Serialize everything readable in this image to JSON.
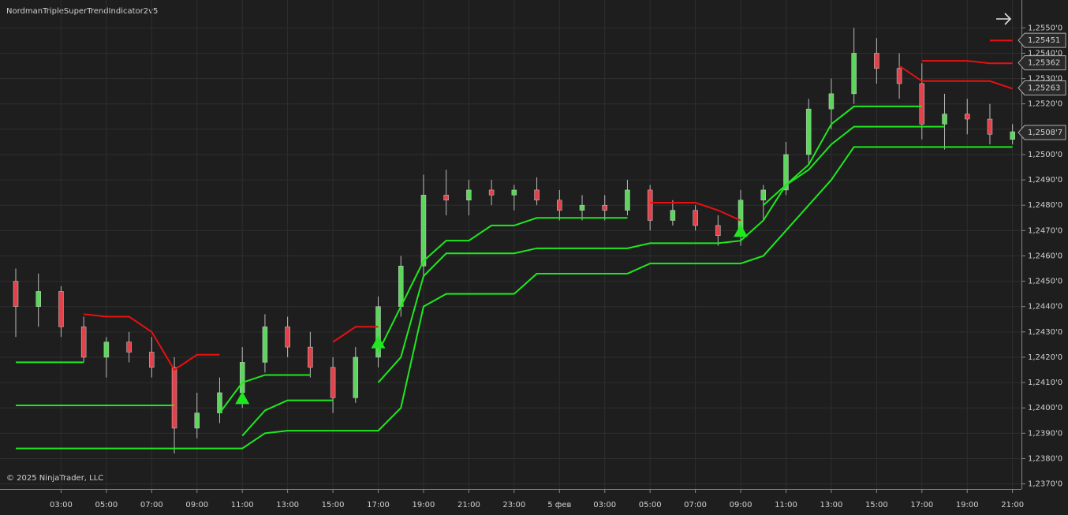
{
  "chart_data": {
    "type": "candlestick",
    "title": "NordmanTripleSuperTrendIndicator2v5",
    "footer": "© 2025 NinjaTrader, LLC",
    "categories": [
      null,
      null,
      "03:00",
      null,
      "05:00",
      null,
      "07:00",
      null,
      "09:00",
      null,
      "11:00",
      null,
      "13:00",
      null,
      "15:00",
      null,
      "17:00",
      null,
      "19:00",
      null,
      "21:00",
      null,
      "23:00",
      null,
      "5 фев",
      null,
      "03:00",
      null,
      "05:00",
      null,
      "07:00",
      null,
      "09:00",
      null,
      "11:00",
      null,
      "13:00",
      null,
      "15:00",
      null,
      "17:00",
      null,
      "19:00",
      null,
      "21:00"
    ],
    "open": [
      1.245,
      1.244,
      1.2446,
      1.2432,
      1.242,
      1.2426,
      1.2422,
      1.2416,
      1.2392,
      1.2398,
      1.2406,
      1.2418,
      1.2432,
      1.2424,
      1.2416,
      1.2404,
      1.242,
      1.244,
      1.2456,
      1.2484,
      1.2482,
      1.2486,
      1.2484,
      1.2486,
      1.2482,
      1.2478,
      1.248,
      1.2478,
      1.2486,
      1.2474,
      1.2478,
      1.2472,
      1.2468,
      1.2482,
      1.2486,
      1.25,
      1.2518,
      1.2524,
      1.254,
      1.2534,
      1.2528,
      1.2512,
      1.2516,
      1.2514,
      1.2506
    ],
    "high": [
      1.2455,
      1.2453,
      1.2448,
      1.2436,
      1.2428,
      1.243,
      1.2428,
      1.242,
      1.2406,
      1.2412,
      1.2424,
      1.2437,
      1.2436,
      1.243,
      1.242,
      1.2424,
      1.2444,
      1.246,
      1.2492,
      1.2494,
      1.249,
      1.249,
      1.2488,
      1.2491,
      1.2486,
      1.2484,
      1.2484,
      1.249,
      1.2488,
      1.2482,
      1.248,
      1.2476,
      1.2486,
      1.2488,
      1.2505,
      1.2522,
      1.253,
      1.255,
      1.2546,
      1.254,
      1.2536,
      1.2524,
      1.2522,
      1.252,
      1.2512
    ],
    "low": [
      1.2428,
      1.2432,
      1.2428,
      1.2418,
      1.2412,
      1.2418,
      1.2412,
      1.2382,
      1.2388,
      1.2394,
      1.24,
      1.2414,
      1.242,
      1.2412,
      1.2398,
      1.2402,
      1.2416,
      1.2436,
      1.2452,
      1.2476,
      1.2476,
      1.248,
      1.2478,
      1.248,
      1.2474,
      1.2474,
      1.2474,
      1.2476,
      1.247,
      1.2472,
      1.247,
      1.2464,
      1.2464,
      1.2474,
      1.2484,
      1.2496,
      1.251,
      1.252,
      1.2528,
      1.2522,
      1.2506,
      1.2502,
      1.2508,
      1.2504,
      1.2504
    ],
    "close": [
      1.244,
      1.2446,
      1.2432,
      1.242,
      1.2426,
      1.2422,
      1.2416,
      1.2392,
      1.2398,
      1.2406,
      1.2418,
      1.2432,
      1.2424,
      1.2416,
      1.2404,
      1.242,
      1.244,
      1.2456,
      1.2484,
      1.2482,
      1.2486,
      1.2484,
      1.2486,
      1.2482,
      1.2478,
      1.248,
      1.2478,
      1.2486,
      1.2474,
      1.2478,
      1.2472,
      1.2468,
      1.2482,
      1.2486,
      1.25,
      1.2518,
      1.2524,
      1.254,
      1.2534,
      1.2528,
      1.2512,
      1.2516,
      1.2514,
      1.2508,
      1.2509
    ],
    "up_color": "#5ed65e",
    "down_color": "#e2424a",
    "series": [
      {
        "color": "#1fe81f",
        "style": "line",
        "values": [
          1.2418,
          1.2418,
          1.2418,
          1.2418,
          null,
          null,
          null,
          null,
          null,
          1.2398,
          1.241,
          1.2413,
          1.2413,
          1.2413,
          null,
          null,
          1.2422,
          1.244,
          1.2458,
          1.2466,
          1.2466,
          1.2472,
          1.2472,
          1.2475,
          1.2475,
          1.2475,
          1.2475,
          1.2475,
          null,
          null,
          null,
          null,
          null,
          1.248,
          1.2488,
          1.2496,
          1.2512,
          1.2519,
          1.2519,
          1.2519,
          1.2519,
          null,
          null,
          null,
          null
        ]
      },
      {
        "color": "#1fe81f",
        "style": "line",
        "values": [
          1.2401,
          1.2401,
          1.2401,
          1.2401,
          1.2401,
          1.2401,
          1.2401,
          1.2401,
          null,
          null,
          1.2389,
          1.2399,
          1.2403,
          1.2403,
          1.2403,
          null,
          1.241,
          1.242,
          1.2452,
          1.2461,
          1.2461,
          1.2461,
          1.2461,
          1.2463,
          1.2463,
          1.2463,
          1.2463,
          1.2463,
          1.2465,
          1.2465,
          1.2465,
          1.2465,
          1.2466,
          1.2474,
          1.2488,
          1.2494,
          1.2504,
          1.2511,
          1.2511,
          1.2511,
          1.2511,
          1.2511,
          null,
          null,
          null
        ]
      },
      {
        "color": "#1fe81f",
        "style": "line",
        "values": [
          1.2384,
          1.2384,
          1.2384,
          1.2384,
          1.2384,
          1.2384,
          1.2384,
          1.2384,
          1.2384,
          1.2384,
          1.2384,
          1.239,
          1.2391,
          1.2391,
          1.2391,
          1.2391,
          1.2391,
          1.24,
          1.244,
          1.2445,
          1.2445,
          1.2445,
          1.2445,
          1.2453,
          1.2453,
          1.2453,
          1.2453,
          1.2453,
          1.2457,
          1.2457,
          1.2457,
          1.2457,
          1.2457,
          1.246,
          1.247,
          1.248,
          1.249,
          1.2503,
          1.2503,
          1.2503,
          1.2503,
          1.2503,
          1.2503,
          1.2503,
          1.2503
        ]
      },
      {
        "color": "#e81010",
        "style": "line",
        "values": [
          null,
          null,
          null,
          1.2437,
          1.2436,
          1.2436,
          1.243,
          1.2415,
          1.2421,
          1.2421,
          null,
          null,
          null,
          null,
          1.2426,
          1.2432,
          1.2432,
          null,
          null,
          null,
          null,
          null,
          null,
          null,
          null,
          null,
          null,
          null,
          1.2481,
          1.2481,
          1.2481,
          1.2478,
          1.2474,
          null,
          null,
          null,
          null,
          null,
          null,
          null,
          1.2537,
          1.2537,
          1.2537,
          1.2536,
          1.2536
        ]
      },
      {
        "color": "#e81010",
        "style": "line",
        "values": [
          null,
          null,
          null,
          null,
          null,
          null,
          null,
          null,
          null,
          null,
          null,
          null,
          null,
          null,
          null,
          null,
          null,
          null,
          null,
          null,
          null,
          null,
          null,
          null,
          null,
          null,
          null,
          null,
          null,
          null,
          null,
          null,
          null,
          null,
          null,
          null,
          null,
          null,
          null,
          1.2535,
          1.2529,
          1.2529,
          1.2529,
          1.2529,
          1.2526
        ]
      },
      {
        "color": "#e81010",
        "style": "line",
        "values": [
          null,
          null,
          null,
          null,
          null,
          null,
          null,
          null,
          null,
          null,
          null,
          null,
          null,
          null,
          null,
          null,
          null,
          null,
          null,
          null,
          null,
          null,
          null,
          null,
          null,
          null,
          null,
          null,
          null,
          null,
          null,
          null,
          null,
          null,
          null,
          null,
          null,
          null,
          null,
          null,
          null,
          null,
          null,
          1.2545,
          1.2545
        ]
      },
      {
        "color": "#1fe81f",
        "style": "triangle",
        "values": [
          null,
          null,
          null,
          null,
          null,
          null,
          null,
          null,
          null,
          null,
          1.2404,
          null,
          null,
          null,
          null,
          null,
          1.2426,
          null,
          null,
          null,
          null,
          null,
          null,
          null,
          null,
          null,
          null,
          null,
          null,
          null,
          null,
          null,
          1.247,
          null,
          null,
          null,
          null,
          null,
          null,
          null,
          null,
          null,
          null,
          null,
          null
        ]
      }
    ],
    "ylim": [
      1.2368,
      1.2561
    ],
    "yticks": [
      {
        "value": 1.237,
        "label": "1,2370'0"
      },
      {
        "value": 1.238,
        "label": "1,2380'0"
      },
      {
        "value": 1.239,
        "label": "1,2390'0"
      },
      {
        "value": 1.24,
        "label": "1,2400'0"
      },
      {
        "value": 1.241,
        "label": "1,2410'0"
      },
      {
        "value": 1.242,
        "label": "1,2420'0"
      },
      {
        "value": 1.243,
        "label": "1,2430'0"
      },
      {
        "value": 1.244,
        "label": "1,2440'0"
      },
      {
        "value": 1.245,
        "label": "1,2450'0"
      },
      {
        "value": 1.246,
        "label": "1,2460'0"
      },
      {
        "value": 1.247,
        "label": "1,2470'0"
      },
      {
        "value": 1.248,
        "label": "1,2480'0"
      },
      {
        "value": 1.249,
        "label": "1,2490'0"
      },
      {
        "value": 1.25,
        "label": "1,2500'0"
      },
      {
        "value": 1.251,
        "label": "1,2510'0"
      },
      {
        "value": 1.252,
        "label": "1,2520'0"
      },
      {
        "value": 1.253,
        "label": "1,2530'0"
      },
      {
        "value": 1.254,
        "label": "1,2540'0"
      },
      {
        "value": 1.255,
        "label": "1,2550'0"
      }
    ],
    "price_markers": [
      {
        "value": 1.25451,
        "label": "1,25451",
        "color": "#e81010"
      },
      {
        "value": 1.25362,
        "label": "1,25362",
        "color": "#e81010"
      },
      {
        "value": 1.25263,
        "label": "1,25263",
        "color": "#e81010"
      },
      {
        "value": 1.25087,
        "label": "1,2508'7",
        "color": "#5ed65e"
      }
    ],
    "grid": true
  }
}
